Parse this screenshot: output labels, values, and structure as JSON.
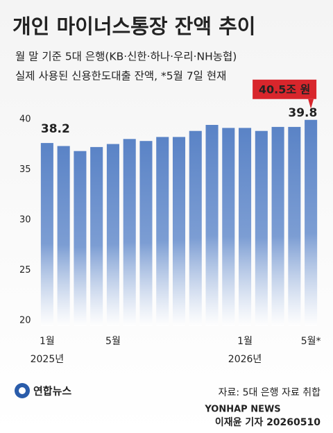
{
  "chart_data": {
    "type": "bar",
    "title": "개인 마이너스통장 잔액 추이",
    "subtitle": [
      "월 말 기준 5대 은행(KB·신한·하나·우리·NH농협)",
      "실제 사용된 신용한도대출 잔액, *5월 7일 현재"
    ],
    "categories": [
      "1월",
      null,
      null,
      null,
      "5월",
      null,
      null,
      null,
      null,
      null,
      null,
      null,
      "1월",
      null,
      null,
      null,
      "5월*"
    ],
    "year_labels": [
      "2025년",
      null,
      null,
      null,
      null,
      null,
      null,
      null,
      null,
      null,
      null,
      null,
      "2026년",
      null,
      null,
      null,
      null
    ],
    "values": [
      38.2,
      37.9,
      37.4,
      37.8,
      38.1,
      38.6,
      38.4,
      38.8,
      38.8,
      39.4,
      40.0,
      39.7,
      39.7,
      39.4,
      39.8,
      39.8,
      40.5
    ],
    "value_labels": [
      "38.2",
      null,
      null,
      null,
      null,
      null,
      null,
      null,
      null,
      null,
      null,
      null,
      null,
      null,
      null,
      "39.8",
      "40.5조 원"
    ],
    "color": "#5a83c6",
    "highlight_color": "#d8262c",
    "ylim": [
      20,
      41
    ],
    "yticks": [
      20,
      25,
      30,
      35,
      40
    ],
    "grid": false,
    "publisher": "연합뉴스",
    "source": "자료: 5대 은행 자료 취합",
    "credit": "이재윤 기자 20260510",
    "watermark": "YONHAP NEWS"
  }
}
